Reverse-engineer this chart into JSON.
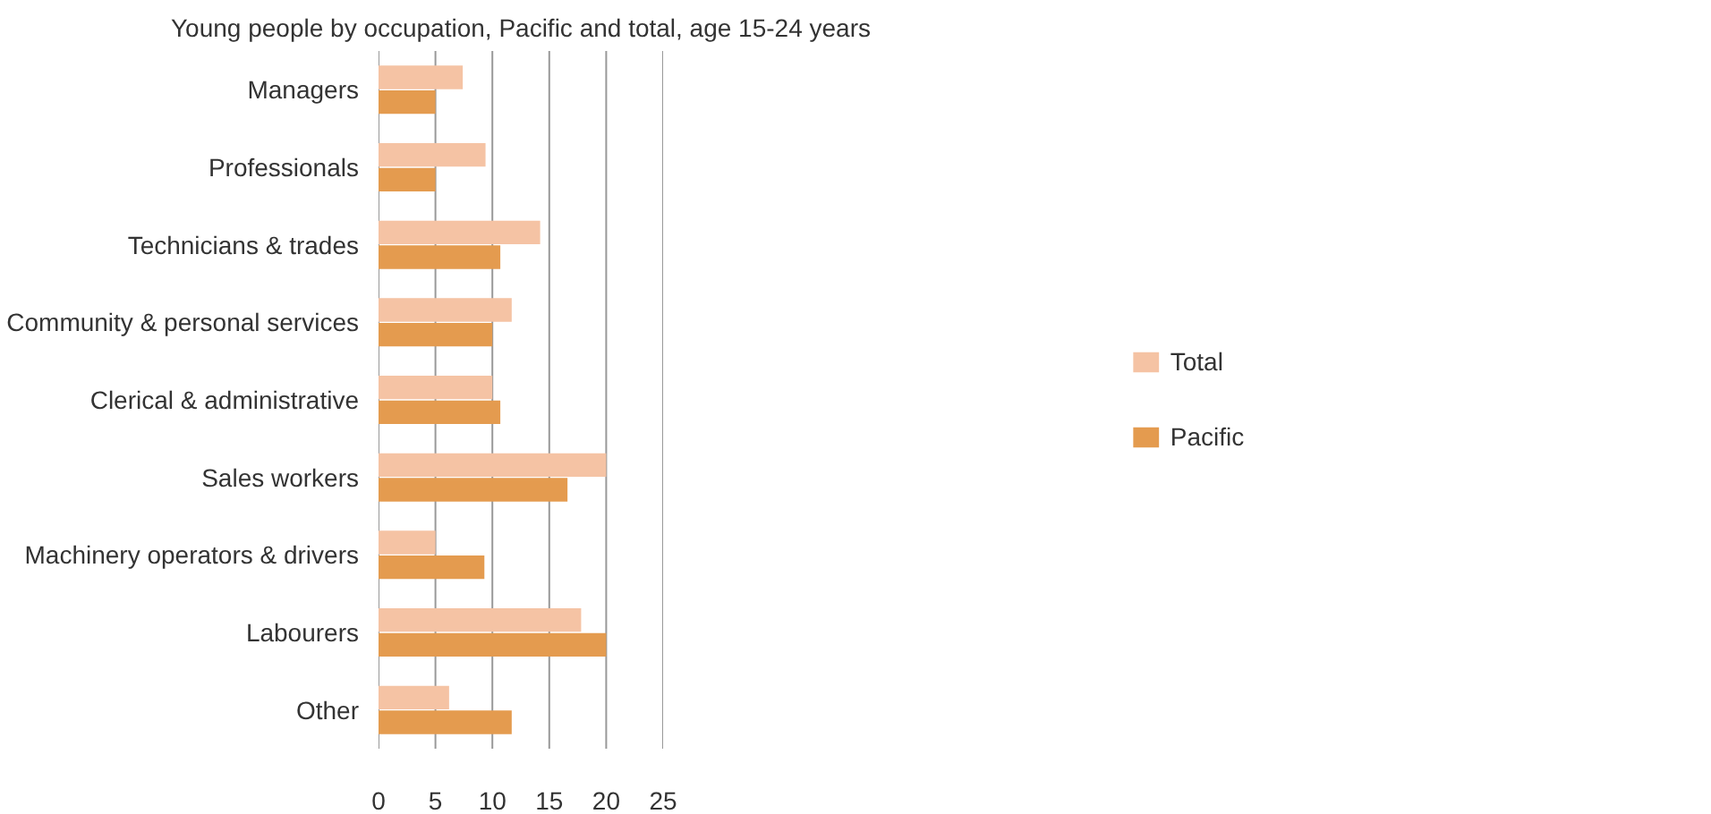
{
  "chart_data": {
    "type": "bar",
    "orientation": "horizontal",
    "title": "Young people by occupation, Pacific and total, age 15-24 years",
    "categories": [
      "Managers",
      "Professionals",
      "Technicians & trades",
      "Community & personal services",
      "Clerical & administrative",
      "Sales workers",
      "Machinery operators & drivers",
      "Labourers",
      "Other"
    ],
    "series": [
      {
        "name": "Total",
        "color": "#f5c3a4",
        "values": [
          7.4,
          9.4,
          14.2,
          11.7,
          10.0,
          20.0,
          5.0,
          17.8,
          6.2
        ]
      },
      {
        "name": "Pacific",
        "color": "#e49b4f",
        "values": [
          5.0,
          5.0,
          10.7,
          10.0,
          10.7,
          16.6,
          9.3,
          20.0,
          11.7
        ]
      }
    ],
    "xlim": [
      0,
      25
    ],
    "xticks": [
      0,
      5,
      10,
      15,
      20,
      25
    ],
    "grid": "x",
    "legend": "right"
  }
}
